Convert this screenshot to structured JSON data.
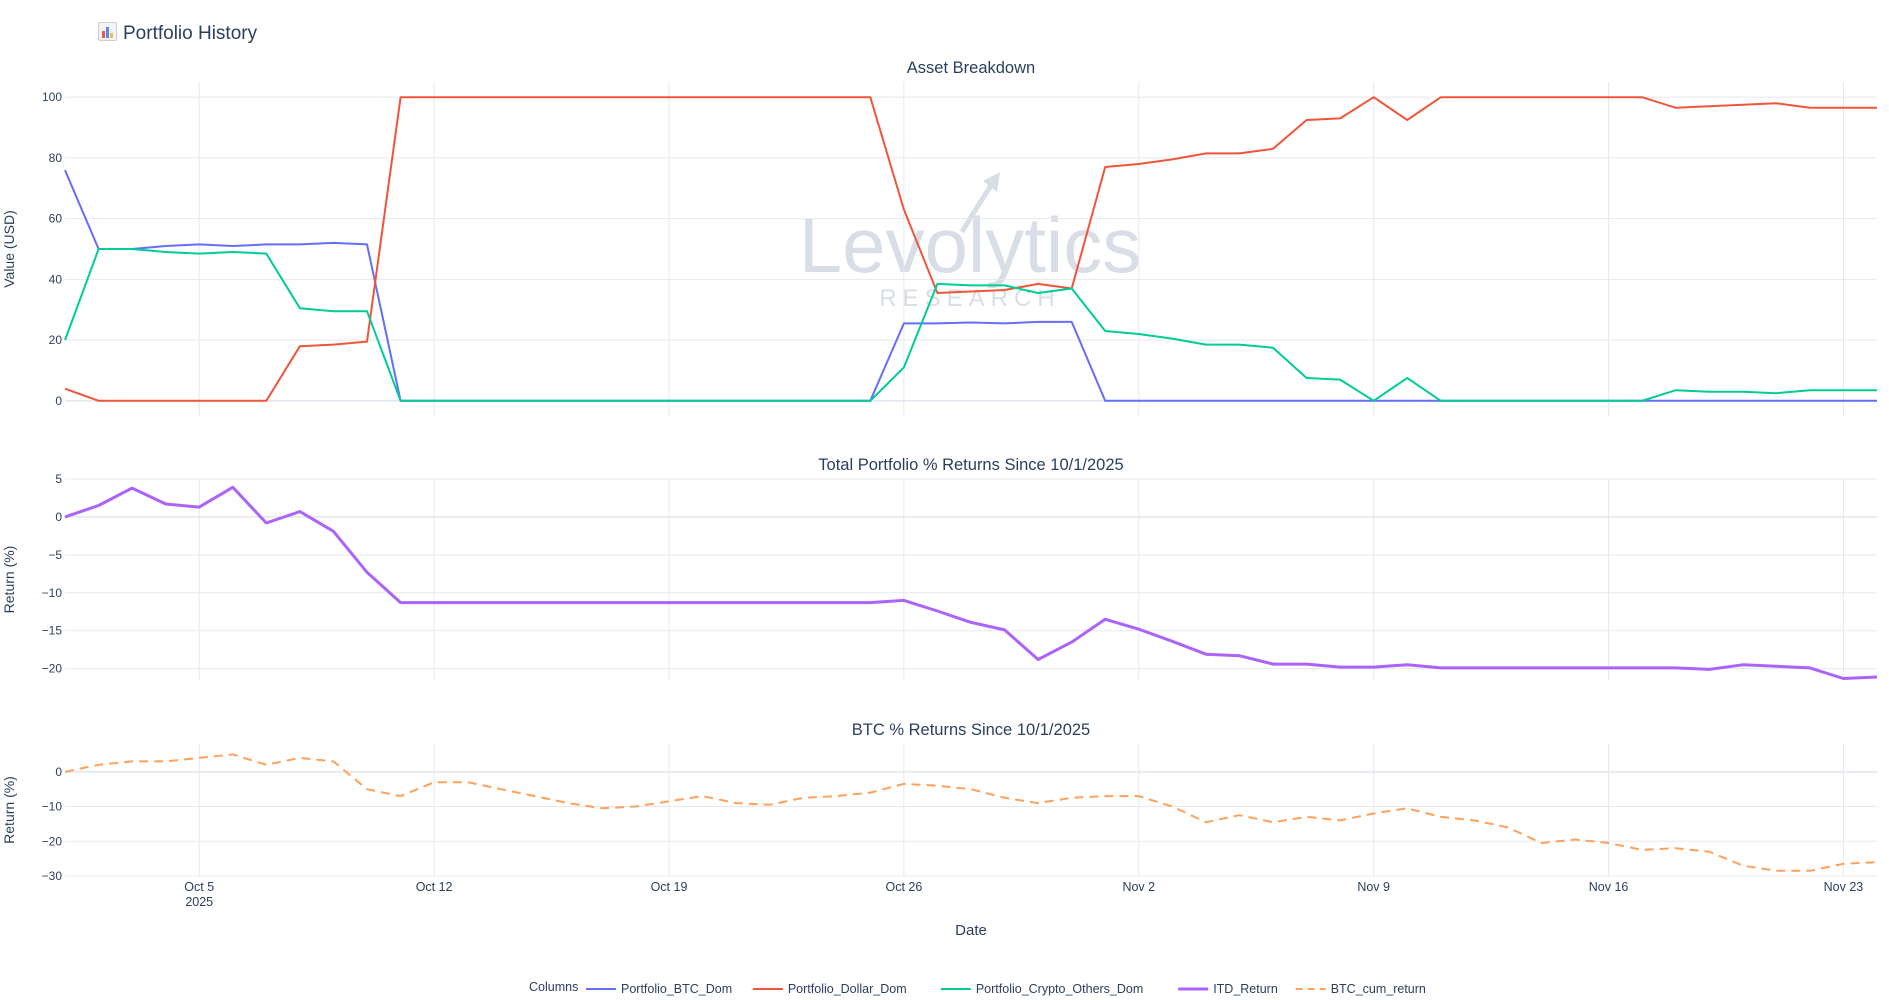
{
  "page": {
    "title": "Portfolio History"
  },
  "watermark": {
    "brand": "Levolytics",
    "sub": "RESEARCH"
  },
  "legend": {
    "title": "Columns"
  },
  "colors": {
    "Portfolio_BTC_Dom": "#636efa",
    "Portfolio_Dollar_Dom": "#ef553b",
    "Portfolio_Crypto_Others_Dom": "#00cc96",
    "ITD_Return": "#ab63fa",
    "BTC_cum_return": "#ffa15a",
    "grid": "#e5e8ee",
    "text": "#2a3f5f"
  },
  "chart_data": [
    {
      "type": "line",
      "title": "Asset Breakdown",
      "xlabel": "",
      "ylabel": "Value (USD)",
      "ylim": [
        -5,
        105
      ],
      "yticks": [
        0,
        20,
        40,
        60,
        80,
        100
      ],
      "x": [
        "2025-10-01",
        "2025-10-02",
        "2025-10-03",
        "2025-10-04",
        "2025-10-05",
        "2025-10-06",
        "2025-10-07",
        "2025-10-08",
        "2025-10-09",
        "2025-10-10",
        "2025-10-11",
        "2025-10-12",
        "2025-10-13",
        "2025-10-14",
        "2025-10-15",
        "2025-10-16",
        "2025-10-17",
        "2025-10-18",
        "2025-10-19",
        "2025-10-20",
        "2025-10-21",
        "2025-10-22",
        "2025-10-23",
        "2025-10-24",
        "2025-10-25",
        "2025-10-26",
        "2025-10-27",
        "2025-10-28",
        "2025-10-29",
        "2025-10-30",
        "2025-10-31",
        "2025-11-01",
        "2025-11-02",
        "2025-11-03",
        "2025-11-04",
        "2025-11-05",
        "2025-11-06",
        "2025-11-07",
        "2025-11-08",
        "2025-11-09",
        "2025-11-10",
        "2025-11-11",
        "2025-11-12",
        "2025-11-13",
        "2025-11-14",
        "2025-11-15",
        "2025-11-16",
        "2025-11-17",
        "2025-11-18",
        "2025-11-19",
        "2025-11-20",
        "2025-11-21",
        "2025-11-22",
        "2025-11-23",
        "2025-11-24"
      ],
      "series": [
        {
          "name": "Portfolio_BTC_Dom",
          "values": [
            76,
            50,
            50,
            51,
            51.5,
            51,
            51.5,
            51.5,
            52,
            51.5,
            0,
            0,
            0,
            0,
            0,
            0,
            0,
            0,
            0,
            0,
            0,
            0,
            0,
            0,
            0,
            25.5,
            25.5,
            25.8,
            25.5,
            26,
            26,
            0,
            0,
            0,
            0,
            0,
            0,
            0,
            0,
            0,
            0,
            0,
            0,
            0,
            0,
            0,
            0,
            0,
            0,
            0,
            0,
            0,
            0,
            0,
            0
          ]
        },
        {
          "name": "Portfolio_Dollar_Dom",
          "values": [
            4,
            0,
            0,
            0,
            0,
            0,
            0,
            18,
            18.5,
            19.5,
            100,
            100,
            100,
            100,
            100,
            100,
            100,
            100,
            100,
            100,
            100,
            100,
            100,
            100,
            100,
            63,
            35.5,
            36,
            36.5,
            38.5,
            37,
            77,
            78,
            79.5,
            81.5,
            81.5,
            83,
            92.5,
            93,
            100,
            92.5,
            100,
            100,
            100,
            100,
            100,
            100,
            100,
            96.5,
            97,
            97.5,
            98,
            96.5,
            96.5,
            96.5
          ]
        },
        {
          "name": "Portfolio_Crypto_Others_Dom",
          "values": [
            20,
            50,
            50,
            49,
            48.5,
            49,
            48.5,
            30.5,
            29.5,
            29.5,
            0,
            0,
            0,
            0,
            0,
            0,
            0,
            0,
            0,
            0,
            0,
            0,
            0,
            0,
            0,
            11,
            38.5,
            38,
            38,
            35.5,
            37,
            23,
            22,
            20.5,
            18.5,
            18.5,
            17.5,
            7.5,
            7,
            0,
            7.5,
            0,
            0,
            0,
            0,
            0,
            0,
            0,
            3.5,
            3,
            3,
            2.5,
            3.5,
            3.5,
            3.5
          ]
        }
      ]
    },
    {
      "type": "line",
      "title": "Total Portfolio % Returns Since 10/1/2025",
      "xlabel": "",
      "ylabel": "Return (%)",
      "ylim": [
        -21.5,
        5
      ],
      "yticks": [
        5,
        0,
        -5,
        -10,
        -15,
        -20
      ],
      "x_ref": 0,
      "series": [
        {
          "name": "ITD_Return",
          "values": [
            0,
            1.5,
            3.8,
            1.7,
            1.3,
            3.9,
            -0.8,
            0.7,
            -1.9,
            -7.3,
            -11.3,
            -11.3,
            -11.3,
            -11.3,
            -11.3,
            -11.3,
            -11.3,
            -11.3,
            -11.3,
            -11.3,
            -11.3,
            -11.3,
            -11.3,
            -11.3,
            -11.3,
            -11,
            -12.4,
            -13.9,
            -14.9,
            -18.8,
            -16.5,
            -13.5,
            -14.8,
            -16.4,
            -18.1,
            -18.3,
            -19.4,
            -19.4,
            -19.8,
            -19.8,
            -19.5,
            -19.9,
            -19.9,
            -19.9,
            -19.9,
            -19.9,
            -19.9,
            -19.9,
            -19.9,
            -20.1,
            -19.5,
            -19.7,
            -19.9,
            -21.3,
            -21.1
          ]
        }
      ]
    },
    {
      "type": "line",
      "title": "BTC % Returns Since 10/1/2025",
      "xlabel": "Date",
      "ylabel": "Return (%)",
      "ylim": [
        -30,
        8
      ],
      "yticks": [
        0,
        -10,
        -20,
        -30
      ],
      "x_ref": 0,
      "xticks": [
        {
          "date": "2025-10-05",
          "label": "Oct 5",
          "sub": "2025"
        },
        {
          "date": "2025-10-12",
          "label": "Oct 12"
        },
        {
          "date": "2025-10-19",
          "label": "Oct 19"
        },
        {
          "date": "2025-10-26",
          "label": "Oct 26"
        },
        {
          "date": "2025-11-02",
          "label": "Nov 2"
        },
        {
          "date": "2025-11-09",
          "label": "Nov 9"
        },
        {
          "date": "2025-11-16",
          "label": "Nov 16"
        },
        {
          "date": "2025-11-23",
          "label": "Nov 23"
        }
      ],
      "series": [
        {
          "name": "BTC_cum_return",
          "dash": true,
          "values": [
            0,
            2,
            3,
            3,
            4,
            5,
            2,
            4,
            3,
            -5,
            -7,
            -3,
            -3,
            -5,
            -7,
            -9,
            -10.5,
            -10,
            -8.5,
            -7,
            -9,
            -9.5,
            -7.5,
            -7,
            -6,
            -3.5,
            -4,
            -5,
            -7.5,
            -9,
            -7.5,
            -7,
            -7,
            -10,
            -14.5,
            -12.5,
            -14.5,
            -13,
            -14,
            -12,
            -10.5,
            -13,
            -14,
            -16,
            -20.5,
            -19.5,
            -20.5,
            -22.5,
            -22,
            -23,
            -27,
            -28.5,
            -28.5,
            -26.5,
            -26
          ]
        }
      ]
    }
  ]
}
